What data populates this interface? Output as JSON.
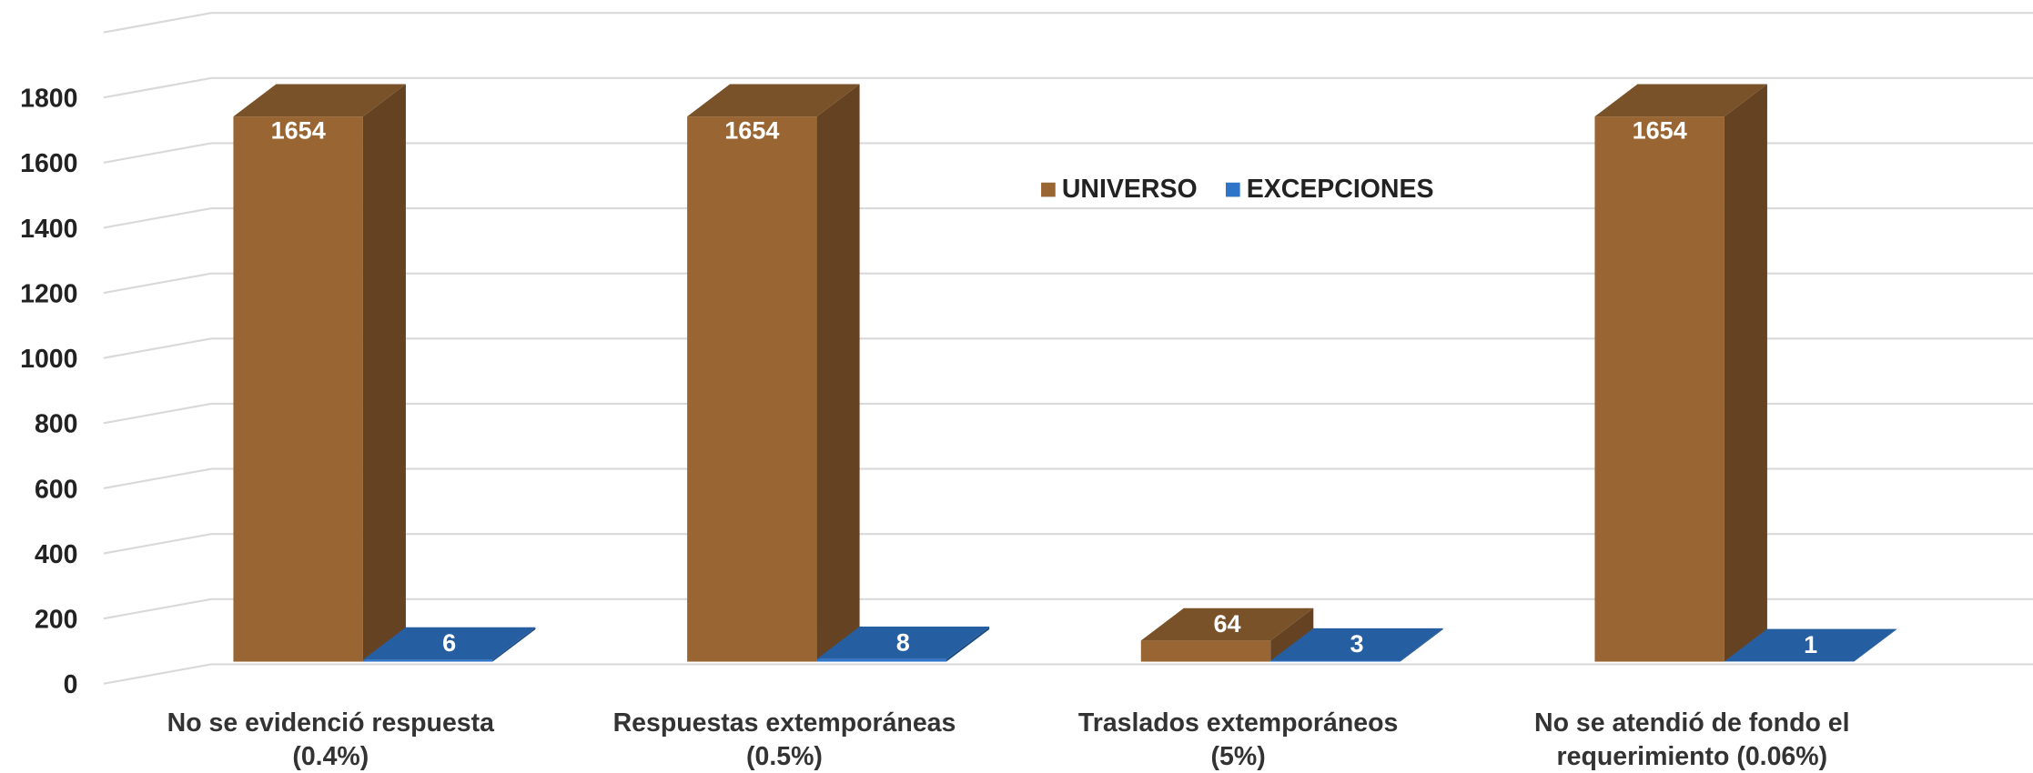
{
  "chart_data": {
    "type": "bar3d",
    "categories": [
      "No se evidenció respuesta\n(0.4%)",
      "Respuestas extemporáneas\n(0.5%)",
      "Traslados extemporáneos\n(5%)",
      "No se atendió de fondo el\nrequerimiento  (0.06%)"
    ],
    "series": [
      {
        "name": "UNIVERSO",
        "color": "#996633",
        "values": [
          1654,
          1654,
          64,
          1654
        ]
      },
      {
        "name": "EXCEPCIONES",
        "color": "#2e75c9",
        "values": [
          6,
          8,
          3,
          1
        ]
      }
    ],
    "ylim": [
      0,
      2000
    ],
    "yticks": [
      0,
      200,
      400,
      600,
      800,
      1000,
      1200,
      1400,
      1600,
      1800
    ],
    "grid": true
  }
}
